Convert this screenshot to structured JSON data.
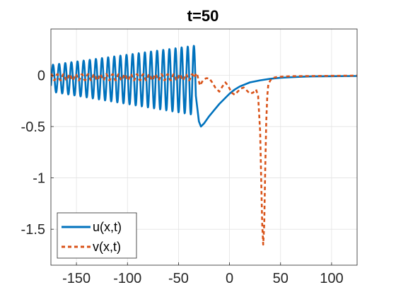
{
  "chart_data": {
    "type": "line",
    "title": "t=50",
    "xlabel": "",
    "ylabel": "",
    "xlim": [
      -175,
      125
    ],
    "ylim": [
      -1.85,
      0.45
    ],
    "xticks": [
      -150,
      -100,
      -50,
      0,
      50,
      100
    ],
    "xtick_labels": [
      "-150",
      "-100",
      "-50",
      "0",
      "50",
      "100"
    ],
    "yticks": [
      0,
      -0.5,
      -1,
      -1.5
    ],
    "ytick_labels": [
      "0",
      "-0.5",
      "-1",
      "-1.5"
    ],
    "grid": true,
    "legend_position": "bottom-left",
    "series": [
      {
        "name": "u(x,t)",
        "color": "#0072BD",
        "style": "solid",
        "description_points": {
          "oscillation": {
            "x_start": -175,
            "x_end": -33,
            "period": 6.0,
            "center_start": -0.03,
            "center_end": -0.05,
            "amp_start": 0.13,
            "amp_end": 0.34
          },
          "trough": {
            "x": -28,
            "y": -0.5
          },
          "decay_to": {
            "x": 125,
            "y": -0.01
          }
        },
        "x": [
          -33,
          -30,
          -28,
          -25,
          -20,
          -15,
          -10,
          -5,
          0,
          5,
          10,
          20,
          30,
          40,
          50,
          60,
          70,
          80,
          100,
          125
        ],
        "y": [
          -0.2,
          -0.45,
          -0.5,
          -0.47,
          -0.4,
          -0.34,
          -0.28,
          -0.23,
          -0.18,
          -0.14,
          -0.11,
          -0.07,
          -0.05,
          -0.035,
          -0.025,
          -0.02,
          -0.015,
          -0.012,
          -0.01,
          -0.008
        ]
      },
      {
        "name": "v(x,t)",
        "color": "#D95319",
        "style": "dashed",
        "description_points": {
          "oscillation": {
            "x_start": -175,
            "x_end": -35,
            "period": 6.0,
            "center": -0.02,
            "amp": 0.03
          }
        },
        "x": [
          -35,
          -32,
          -29,
          -26,
          -23,
          -20,
          -17,
          -14,
          -10,
          -7,
          -4,
          -1,
          2,
          5,
          8,
          11,
          14,
          17,
          20,
          23,
          26,
          28,
          30,
          31,
          32,
          33,
          34,
          35,
          36,
          37,
          38,
          40,
          42,
          45,
          50,
          60,
          80,
          100,
          125
        ],
        "y": [
          -0.02,
          0.02,
          -0.1,
          -0.05,
          -0.03,
          -0.03,
          -0.07,
          -0.12,
          -0.16,
          -0.11,
          -0.07,
          -0.11,
          -0.17,
          -0.19,
          -0.16,
          -0.13,
          -0.12,
          -0.15,
          -0.18,
          -0.17,
          -0.14,
          -0.2,
          -0.55,
          -1.0,
          -1.45,
          -1.65,
          -1.45,
          -0.9,
          -0.45,
          -0.2,
          -0.09,
          -0.05,
          -0.03,
          -0.02,
          -0.015,
          -0.01,
          -0.008,
          -0.006,
          -0.004
        ]
      }
    ]
  }
}
